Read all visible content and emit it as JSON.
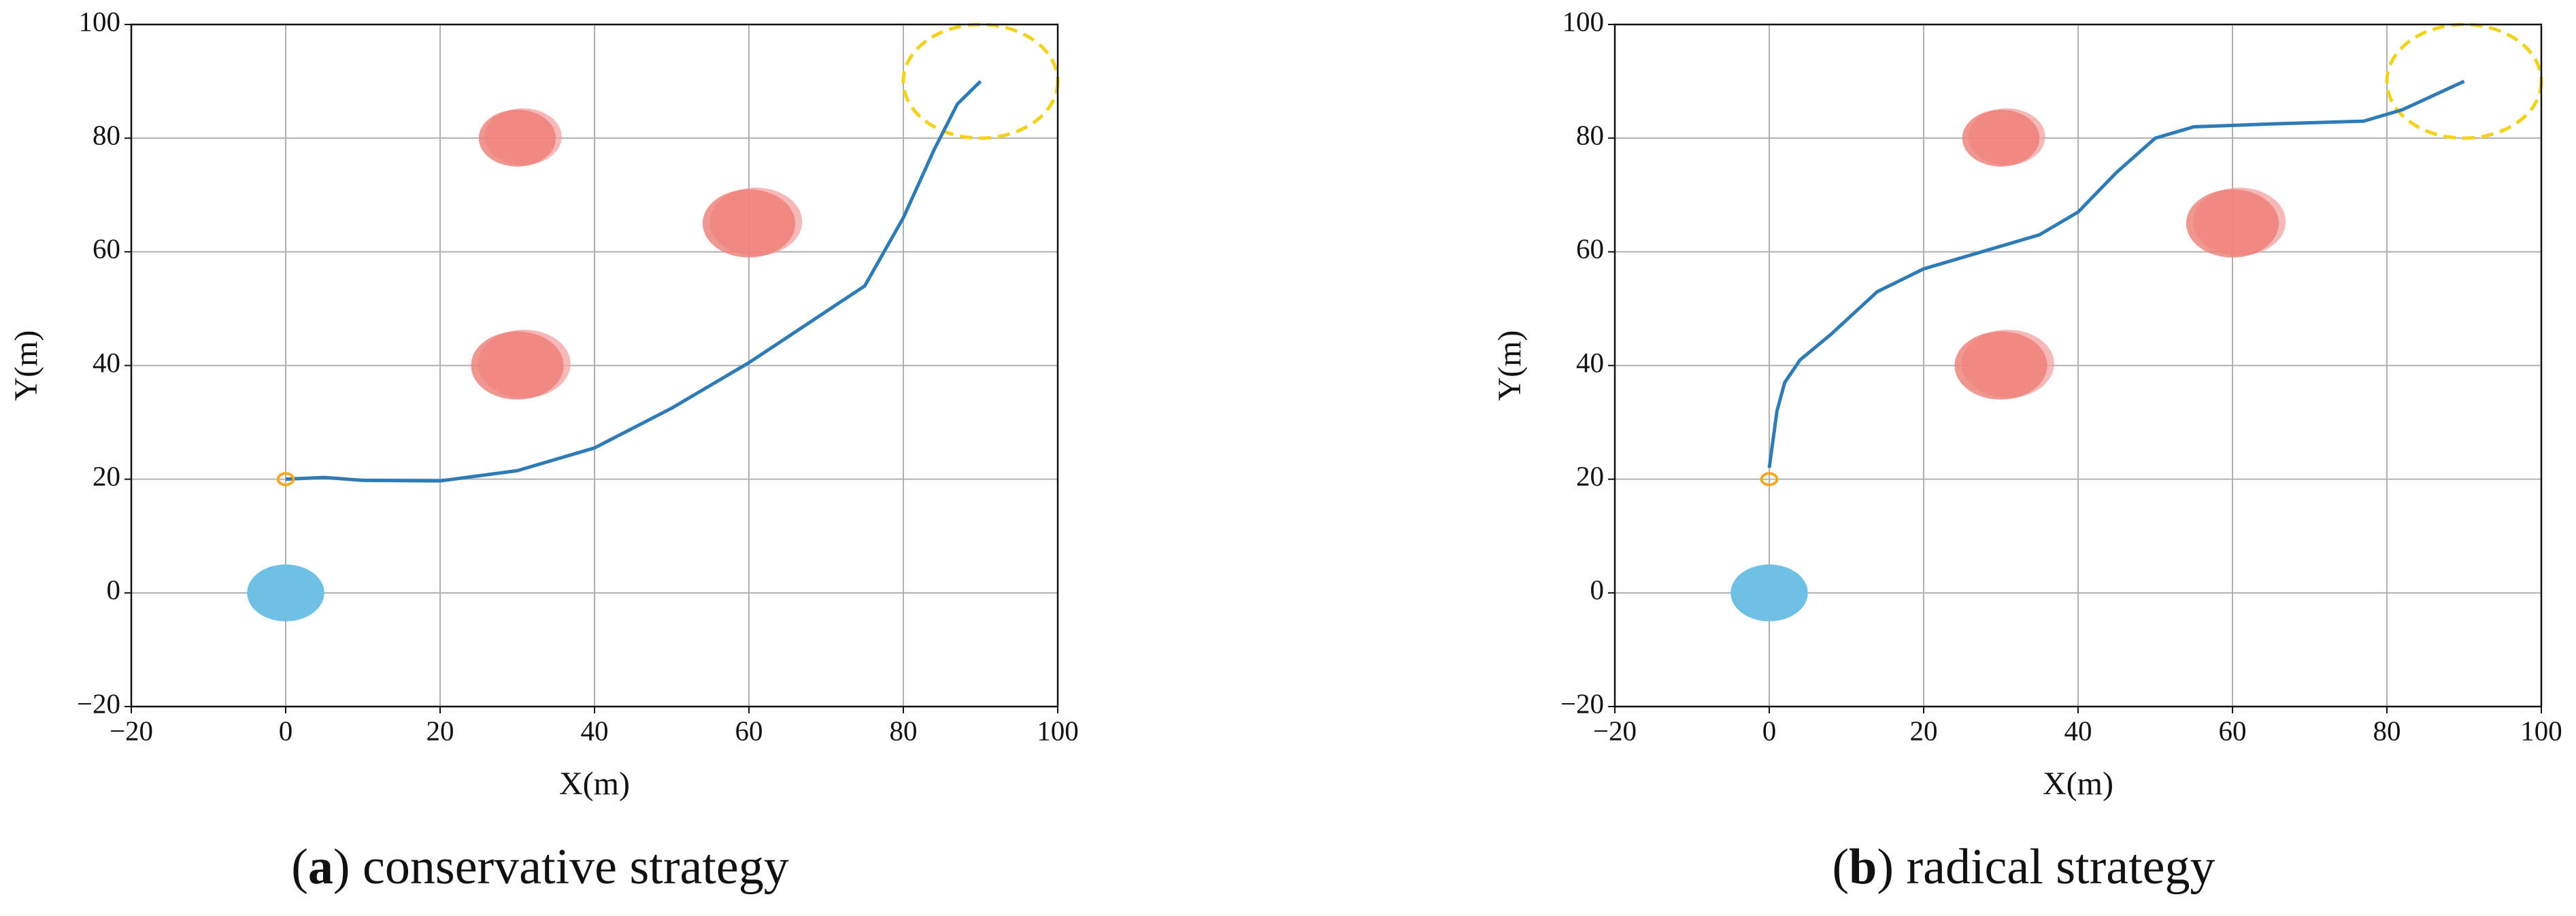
{
  "chart_data": [
    {
      "type": "line",
      "xlabel": "X(m)",
      "ylabel": "Y(m)",
      "caption_parts": [
        "(",
        "a",
        ") conservative strategy"
      ],
      "x": [
        0,
        5,
        10,
        20,
        30,
        40,
        50,
        60,
        70,
        75,
        80,
        84,
        87,
        90
      ],
      "values": [
        20,
        20.3,
        19.8,
        19.7,
        21.5,
        25.5,
        32.5,
        40.5,
        49.5,
        54,
        66,
        78,
        86,
        90
      ],
      "color": "#2f7bb6",
      "xlim": [
        -20,
        100
      ],
      "ylim": [
        -20,
        100
      ],
      "xticks": [
        {
          "value": -20,
          "label": "−20"
        },
        0,
        20,
        40,
        60,
        80,
        100
      ],
      "yticks": [
        {
          "value": -20,
          "label": "−20"
        },
        0,
        20,
        40,
        60,
        80,
        100
      ],
      "grid": true,
      "obstacles": [
        {
          "x": 30,
          "y": 80,
          "r": 5
        },
        {
          "x": 60,
          "y": 65,
          "r": 6
        },
        {
          "x": 30,
          "y": 40,
          "r": 6
        }
      ],
      "base": {
        "x": 0,
        "y": 0,
        "r": 5
      },
      "start": {
        "x": 0,
        "y": 20,
        "r": 1
      },
      "goal": {
        "x": 90,
        "y": 90,
        "r": 10
      }
    },
    {
      "type": "line",
      "xlabel": "X(m)",
      "ylabel": "Y(m)",
      "caption_parts": [
        "(",
        "b",
        ") radical strategy"
      ],
      "x": [
        0,
        1,
        2,
        4,
        8,
        14,
        20,
        30,
        35,
        40,
        45,
        50,
        55,
        65,
        77,
        82,
        90
      ],
      "values": [
        22,
        32,
        37,
        41,
        45.5,
        53,
        57,
        61,
        63,
        67,
        74,
        80,
        82,
        82.5,
        83,
        85,
        90
      ],
      "color": "#2f7bb6",
      "xlim": [
        -20,
        100
      ],
      "ylim": [
        -20,
        100
      ],
      "xticks": [
        {
          "value": -20,
          "label": "−20"
        },
        0,
        20,
        40,
        60,
        80,
        100
      ],
      "yticks": [
        {
          "value": -20,
          "label": "−20"
        },
        0,
        20,
        40,
        60,
        80,
        100
      ],
      "grid": true,
      "obstacles": [
        {
          "x": 30,
          "y": 80,
          "r": 5
        },
        {
          "x": 60,
          "y": 65,
          "r": 6
        },
        {
          "x": 30,
          "y": 40,
          "r": 6
        }
      ],
      "base": {
        "x": 0,
        "y": 0,
        "r": 5
      },
      "start": {
        "x": 0,
        "y": 20,
        "r": 1
      },
      "goal": {
        "x": 90,
        "y": 90,
        "r": 10
      }
    }
  ]
}
